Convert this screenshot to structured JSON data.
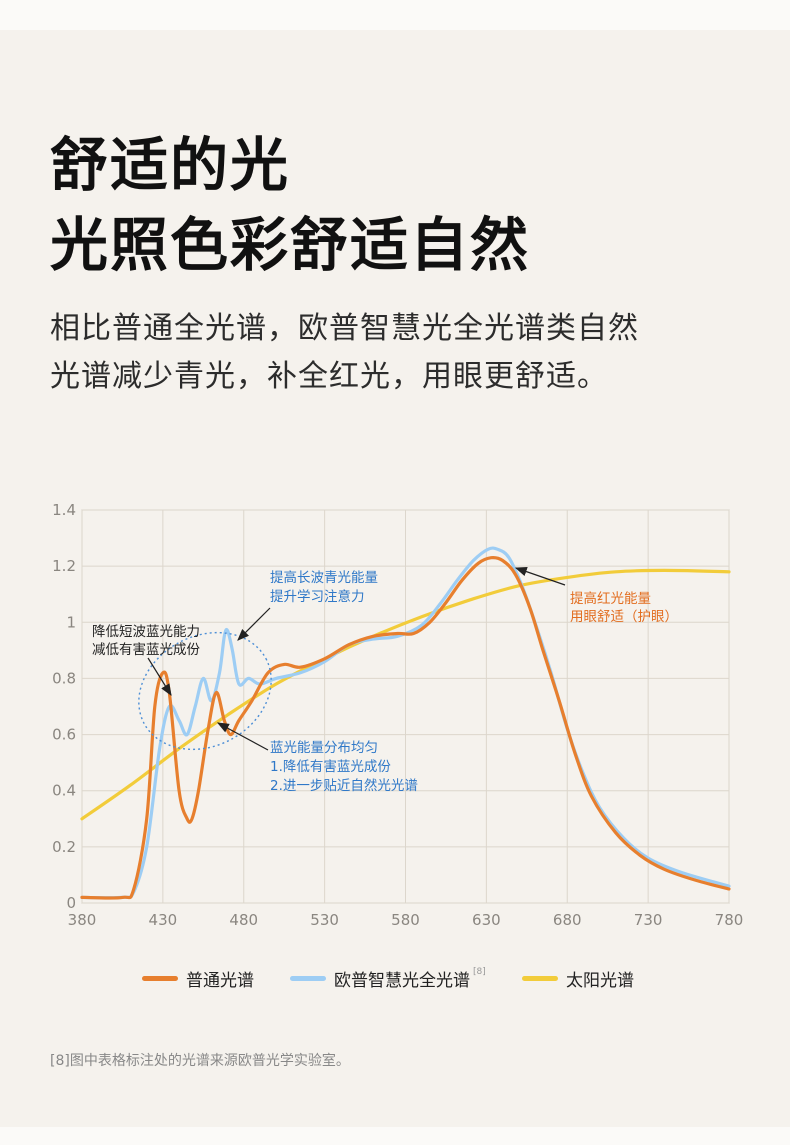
{
  "heading": {
    "line1": "舒适的光",
    "line2": "光照色彩舒适自然"
  },
  "subheading": {
    "line1": "相比普通全光谱，欧普智慧光全光谱类自然",
    "line2": "光谱减少青光，补全红光，用眼更舒适。"
  },
  "chart_data": {
    "type": "line",
    "xlim": [
      380,
      780
    ],
    "ylim": [
      0,
      1.4
    ],
    "x_ticks": [
      "380",
      "430",
      "480",
      "530",
      "580",
      "630",
      "680",
      "730",
      "780"
    ],
    "y_ticks": [
      "0",
      "0.2",
      "0.4",
      "0.6",
      "0.8",
      "1",
      "1.2",
      "1.4"
    ],
    "grid": true,
    "legend_position": "bottom",
    "series": [
      {
        "name": "普通光谱",
        "color": "#e77f2e",
        "points": [
          [
            380,
            0.02
          ],
          [
            405,
            0.02
          ],
          [
            412,
            0.05
          ],
          [
            420,
            0.3
          ],
          [
            425,
            0.7
          ],
          [
            430,
            0.82
          ],
          [
            434,
            0.75
          ],
          [
            440,
            0.4
          ],
          [
            445,
            0.3
          ],
          [
            448,
            0.3
          ],
          [
            452,
            0.4
          ],
          [
            458,
            0.62
          ],
          [
            463,
            0.75
          ],
          [
            468,
            0.65
          ],
          [
            472,
            0.6
          ],
          [
            477,
            0.65
          ],
          [
            485,
            0.72
          ],
          [
            495,
            0.82
          ],
          [
            505,
            0.85
          ],
          [
            515,
            0.84
          ],
          [
            530,
            0.87
          ],
          [
            545,
            0.92
          ],
          [
            560,
            0.95
          ],
          [
            575,
            0.96
          ],
          [
            585,
            0.96
          ],
          [
            595,
            1.0
          ],
          [
            605,
            1.07
          ],
          [
            615,
            1.15
          ],
          [
            625,
            1.21
          ],
          [
            633,
            1.23
          ],
          [
            640,
            1.22
          ],
          [
            648,
            1.17
          ],
          [
            657,
            1.05
          ],
          [
            665,
            0.9
          ],
          [
            675,
            0.72
          ],
          [
            685,
            0.53
          ],
          [
            695,
            0.38
          ],
          [
            710,
            0.25
          ],
          [
            725,
            0.17
          ],
          [
            740,
            0.12
          ],
          [
            760,
            0.08
          ],
          [
            780,
            0.05
          ]
        ]
      },
      {
        "name": "欧普智慧光全光谱",
        "color": "#9dcdf4",
        "sup": "[8]",
        "points": [
          [
            380,
            0.02
          ],
          [
            405,
            0.02
          ],
          [
            412,
            0.04
          ],
          [
            420,
            0.2
          ],
          [
            428,
            0.55
          ],
          [
            434,
            0.7
          ],
          [
            440,
            0.65
          ],
          [
            445,
            0.6
          ],
          [
            450,
            0.7
          ],
          [
            455,
            0.8
          ],
          [
            460,
            0.72
          ],
          [
            465,
            0.82
          ],
          [
            468,
            0.95
          ],
          [
            470,
            0.97
          ],
          [
            473,
            0.9
          ],
          [
            477,
            0.78
          ],
          [
            483,
            0.8
          ],
          [
            490,
            0.78
          ],
          [
            500,
            0.8
          ],
          [
            515,
            0.82
          ],
          [
            530,
            0.86
          ],
          [
            545,
            0.92
          ],
          [
            560,
            0.94
          ],
          [
            575,
            0.95
          ],
          [
            590,
            0.99
          ],
          [
            602,
            1.07
          ],
          [
            612,
            1.15
          ],
          [
            622,
            1.22
          ],
          [
            631,
            1.26
          ],
          [
            637,
            1.26
          ],
          [
            644,
            1.23
          ],
          [
            652,
            1.13
          ],
          [
            660,
            1.0
          ],
          [
            670,
            0.82
          ],
          [
            680,
            0.62
          ],
          [
            690,
            0.46
          ],
          [
            700,
            0.34
          ],
          [
            715,
            0.23
          ],
          [
            730,
            0.16
          ],
          [
            750,
            0.11
          ],
          [
            780,
            0.06
          ]
        ]
      },
      {
        "name": "太阳光谱",
        "color": "#f2cc3a",
        "points": [
          [
            380,
            0.3
          ],
          [
            410,
            0.42
          ],
          [
            440,
            0.55
          ],
          [
            470,
            0.67
          ],
          [
            500,
            0.78
          ],
          [
            530,
            0.87
          ],
          [
            560,
            0.95
          ],
          [
            590,
            1.02
          ],
          [
            620,
            1.08
          ],
          [
            650,
            1.13
          ],
          [
            680,
            1.16
          ],
          [
            710,
            1.18
          ],
          [
            740,
            1.185
          ],
          [
            780,
            1.18
          ]
        ]
      }
    ],
    "annotations": {
      "left1": "降低短波蓝光能力",
      "left2": "减低有害蓝光成份",
      "top1": "提高长波青光能量",
      "top2": "提升学习注意力",
      "mid1": "蓝光能量分布均匀",
      "mid2": "1.降低有害蓝光成份",
      "mid3": "2.进一步贴近自然光光谱",
      "right1": "提高红光能量",
      "right2": "用眼舒适（护眼）"
    }
  },
  "footnote": "[8]图中表格标注处的光谱来源欧普光学实验室。"
}
